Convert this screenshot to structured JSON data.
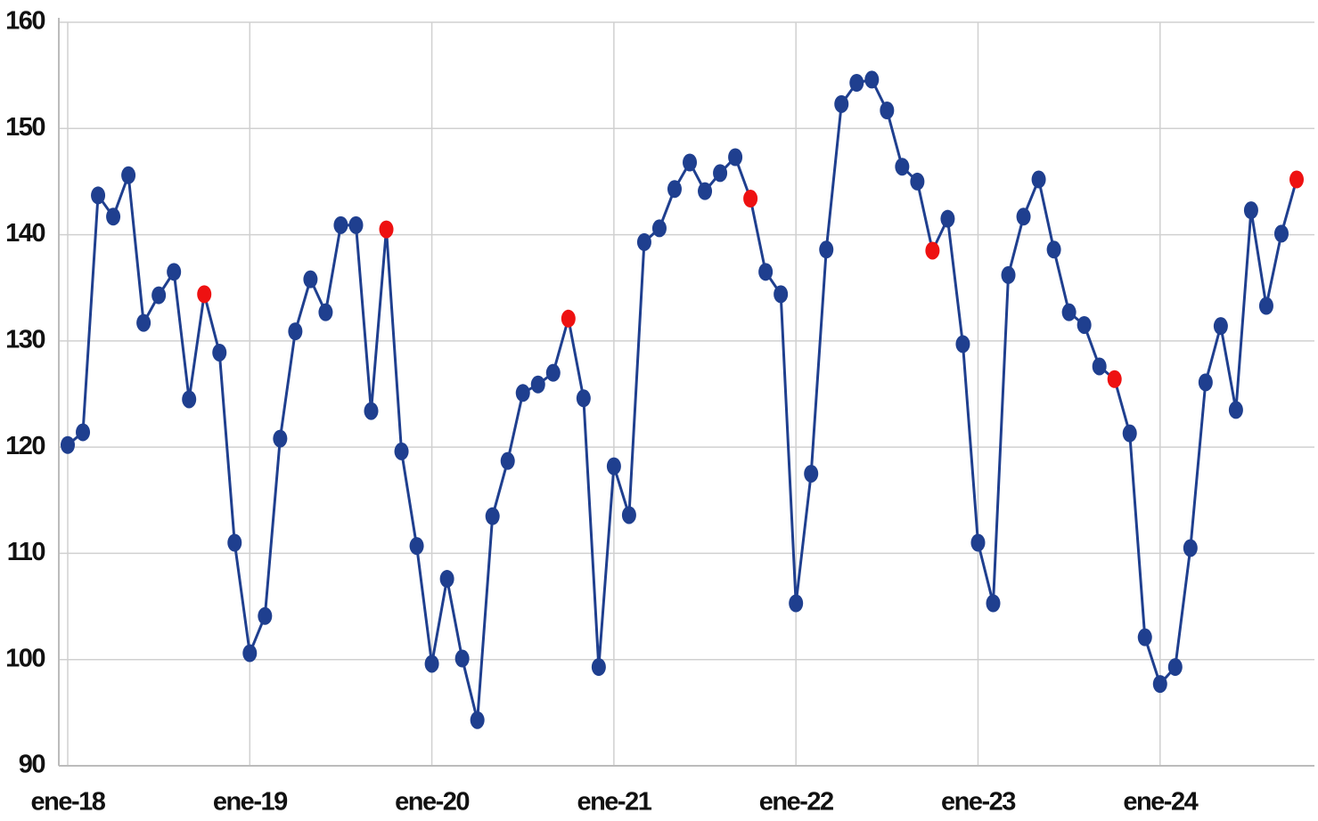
{
  "chart_data": {
    "type": "line",
    "categories": [
      "ene-18",
      null,
      null,
      null,
      null,
      null,
      null,
      null,
      null,
      null,
      null,
      null,
      "ene-19",
      null,
      null,
      null,
      null,
      null,
      null,
      null,
      null,
      null,
      null,
      null,
      "ene-20",
      null,
      null,
      null,
      null,
      null,
      null,
      null,
      null,
      null,
      null,
      null,
      "ene-21",
      null,
      null,
      null,
      null,
      null,
      null,
      null,
      null,
      null,
      null,
      null,
      "ene-22",
      null,
      null,
      null,
      null,
      null,
      null,
      null,
      null,
      null,
      null,
      null,
      "ene-23",
      null,
      null,
      null,
      null,
      null,
      null,
      null,
      null,
      null,
      null,
      null,
      "ene-24",
      null,
      null,
      null,
      null,
      null,
      null,
      null,
      null,
      null
    ],
    "series": [
      {
        "color": "#1f3f8f",
        "values": [
          120.2,
          121.4,
          143.7,
          141.7,
          145.6,
          131.7,
          134.3,
          136.5,
          124.5,
          134.4,
          128.9,
          111.0,
          100.6,
          104.1,
          120.8,
          130.9,
          135.8,
          132.7,
          140.9,
          140.9,
          123.4,
          140.5,
          119.6,
          110.7,
          99.6,
          107.6,
          100.1,
          94.3,
          113.5,
          118.7,
          125.1,
          125.9,
          127.0,
          132.1,
          124.6,
          99.3,
          118.2,
          113.6,
          139.3,
          140.6,
          144.3,
          146.8,
          144.1,
          145.8,
          147.3,
          143.4,
          136.5,
          134.4,
          105.3,
          117.5,
          138.6,
          152.3,
          154.3,
          154.6,
          151.7,
          146.4,
          145.0,
          138.5,
          141.5,
          129.7,
          111.0,
          105.3,
          136.2,
          141.7,
          145.2,
          138.6,
          132.7,
          131.5,
          127.6,
          126.4,
          121.3,
          102.1,
          97.7,
          99.3,
          110.5,
          126.1,
          131.4,
          123.5,
          142.3,
          133.3,
          140.1,
          145.2
        ]
      }
    ],
    "highlight_color": "#ee1111",
    "highlight_points": [
      9,
      21,
      33,
      45,
      57,
      69,
      81
    ],
    "ylim": [
      90,
      160
    ],
    "yticks": [
      90,
      100,
      110,
      120,
      130,
      140,
      150,
      160
    ],
    "grid": true
  }
}
